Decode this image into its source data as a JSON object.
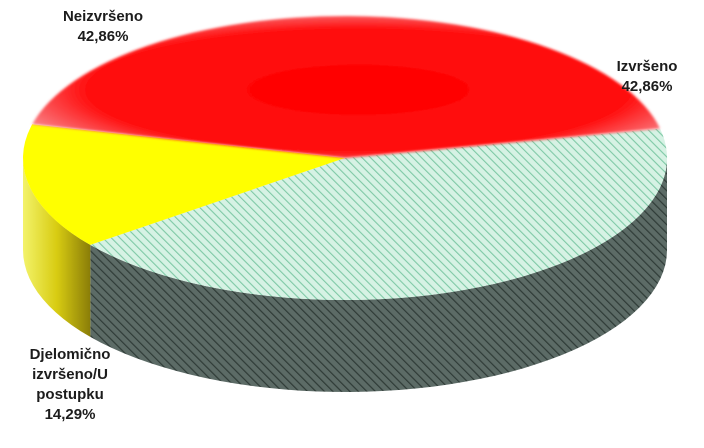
{
  "chart_data": {
    "type": "pie",
    "style": "3d-exploded-free",
    "slices": [
      {
        "name": "Izvršeno",
        "value": 42.86,
        "label": "42,86%",
        "color": "#bfe8d6",
        "pattern": "diagonal-hatch-green"
      },
      {
        "name": "Djelomično izvršeno/U postupku",
        "value": 14.29,
        "label": "14,29%",
        "color": "#ffff00"
      },
      {
        "name": "Neizvršeno",
        "value": 42.86,
        "label": "42,86%",
        "color": "#ff0000"
      }
    ]
  },
  "labels": {
    "neizvrseno": {
      "name": "Neizvršeno",
      "pct": "42,86%"
    },
    "izvrseno": {
      "name": "Izvršeno",
      "pct": "42,86%"
    },
    "djelomicno": {
      "line1": "Djelomično",
      "line2": "izvršeno/U",
      "line3": "postupku",
      "pct": "14,29%"
    }
  }
}
